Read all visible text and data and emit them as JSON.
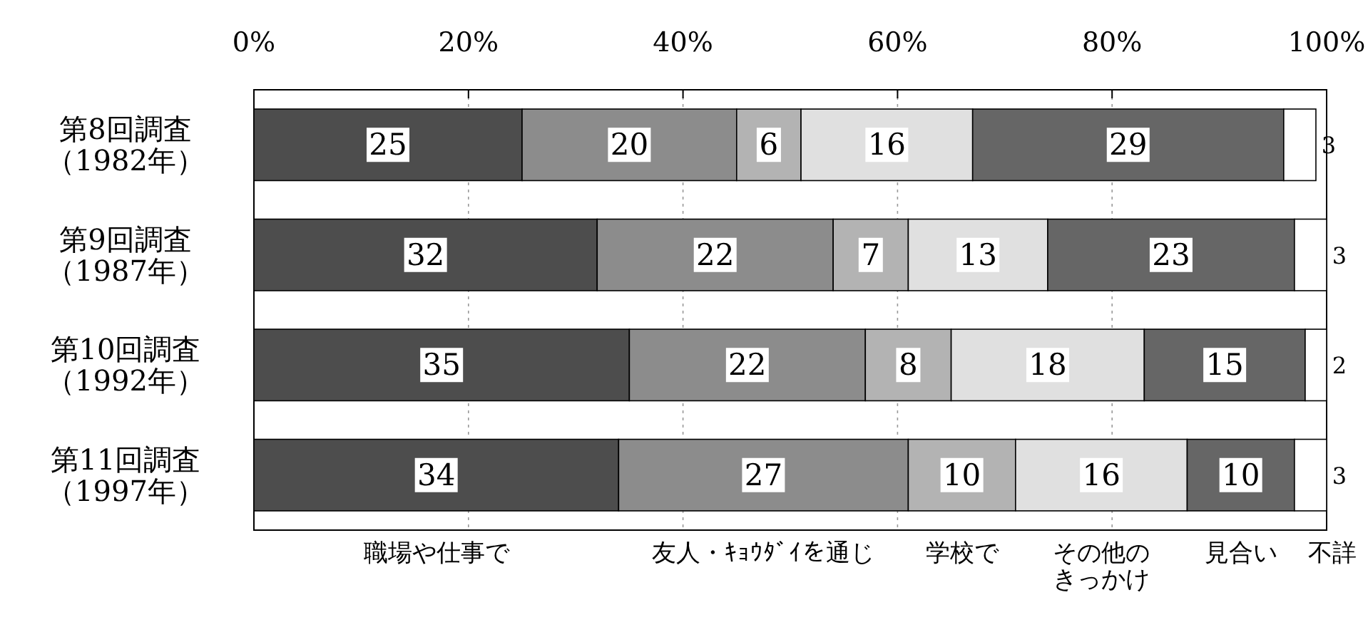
{
  "chart_data": {
    "type": "bar",
    "orientation": "horizontal",
    "stacked": true,
    "data_labels": true,
    "grid": "x",
    "legend": "bottom",
    "categories": [
      "第8回調査（1982年）",
      "第9回調査（1987年）",
      "第10回調査（1992年）",
      "第11回調査（1997年）"
    ],
    "xlim": [
      0,
      100
    ],
    "xticks": [
      {
        "value": 0,
        "label": "0%"
      },
      {
        "value": 20,
        "label": "20%"
      },
      {
        "value": 40,
        "label": "40%"
      },
      {
        "value": 60,
        "label": "60%"
      },
      {
        "value": 80,
        "label": "80%"
      },
      {
        "value": 100,
        "label": "100%"
      }
    ],
    "series": [
      {
        "name": "職場や仕事で",
        "color": "#4d4d4d",
        "values": [
          25,
          32,
          35,
          34
        ]
      },
      {
        "name": "友人・ｷｮｳﾀﾞｲを通じ",
        "color": "#8c8c8c",
        "values": [
          20,
          22,
          22,
          27
        ]
      },
      {
        "name": "学校で",
        "color": "#b3b3b3",
        "values": [
          6,
          7,
          8,
          10
        ]
      },
      {
        "name": "その他のきっかけ",
        "color": "#e0e0e0",
        "values": [
          16,
          13,
          18,
          16
        ]
      },
      {
        "name": "見合い",
        "color": "#666666",
        "values": [
          29,
          23,
          15,
          10
        ]
      },
      {
        "name": "不詳",
        "color": "#ffffff",
        "values": [
          3,
          3,
          2,
          3
        ]
      }
    ]
  }
}
